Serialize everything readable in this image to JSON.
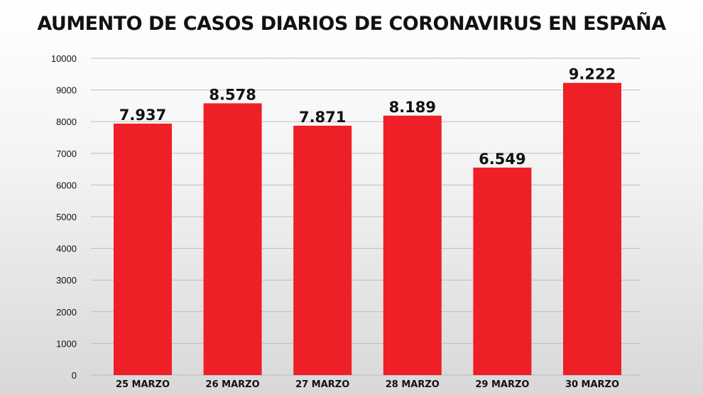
{
  "chart_data": {
    "type": "bar",
    "title": "AUMENTO DE CASOS DIARIOS DE CORONAVIRUS EN ESPAÑA",
    "categories": [
      "25 MARZO",
      "26 MARZO",
      "27 MARZO",
      "28 MARZO",
      "29 MARZO",
      "30 MARZO"
    ],
    "values": [
      7937,
      8578,
      7871,
      8189,
      6549,
      9222
    ],
    "data_labels": [
      "7.937",
      "8.578",
      "7.871",
      "8.189",
      "6.549",
      "9.222"
    ],
    "yticks": [
      0,
      1000,
      2000,
      3000,
      4000,
      5000,
      6000,
      7000,
      8000,
      9000,
      10000
    ],
    "ylim": [
      0,
      10000
    ],
    "xlabel": "",
    "ylabel": "",
    "grid": true,
    "legend": "none",
    "colors": {
      "bar": "#ee1f27",
      "grid": "#bdbdbd",
      "text": "#111111"
    }
  }
}
